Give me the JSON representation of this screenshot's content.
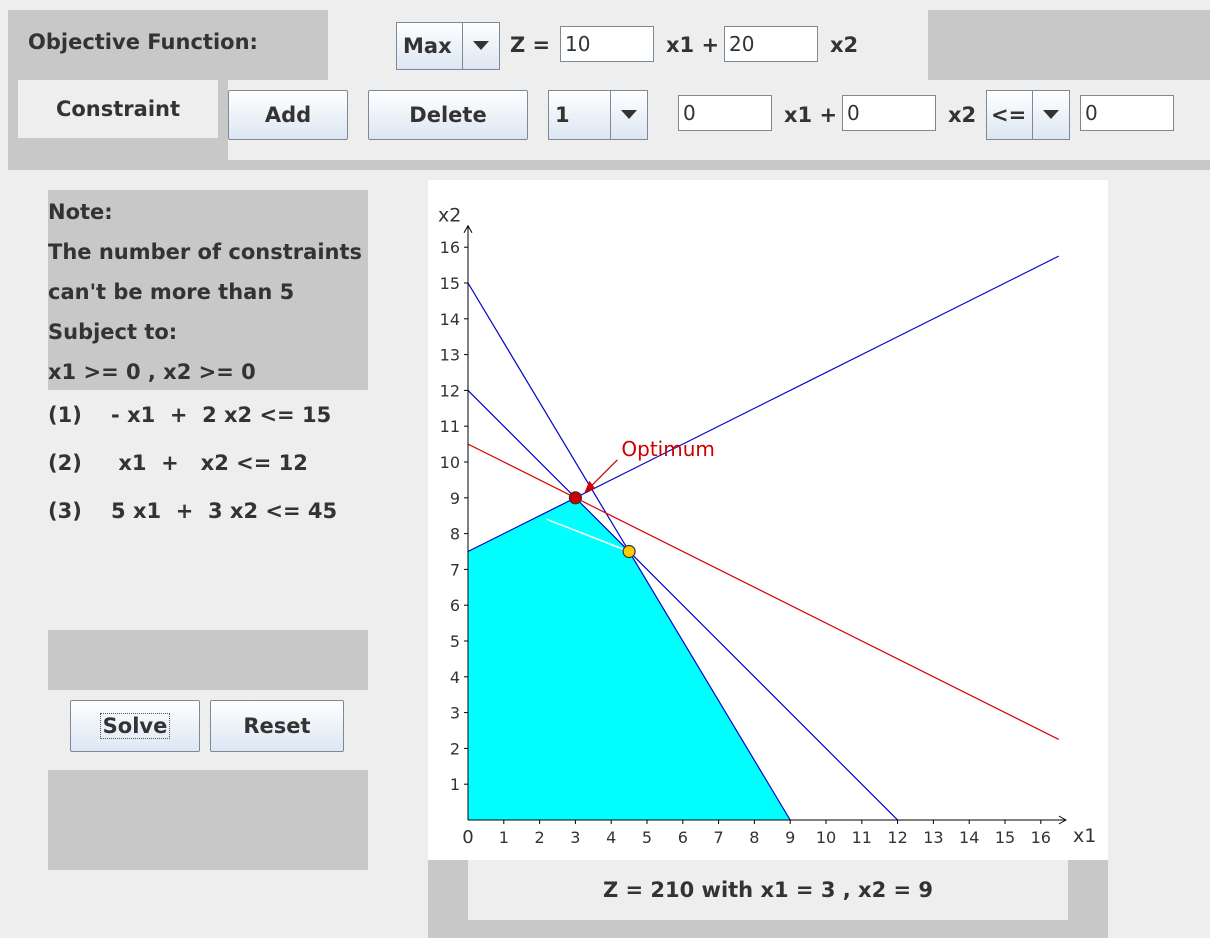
{
  "objective": {
    "label": "Objective Function:",
    "mode": "Max",
    "z_label": "Z =",
    "coef1": "10",
    "x1_plus": "x1 +",
    "coef2": "20",
    "x2_label": "x2"
  },
  "constraint_bar": {
    "tab_label": "Constraint",
    "add_label": "Add",
    "delete_label": "Delete",
    "index": "1",
    "coef1": "0",
    "x1_plus": "x1 +",
    "coef2": "0",
    "x2_label": "x2",
    "operator": "<=",
    "rhs": "0"
  },
  "note": {
    "lines": [
      "Note:",
      "The number of constraints",
      "can't be more than 5",
      "Subject to:",
      "x1 >= 0 , x2 >= 0"
    ]
  },
  "constraints": [
    {
      "text": "(1)    - x1  +  2 x2 <= 15"
    },
    {
      "text": "(2)     x1  +   x2 <= 12"
    },
    {
      "text": "(3)    5 x1  +  3 x2 <= 45"
    }
  ],
  "buttons": {
    "solve": "Solve",
    "reset": "Reset"
  },
  "result": {
    "text": "Z = 210  with  x1 = 3 , x2 = 9"
  },
  "colors": {
    "feasible": "#00ffff",
    "constraint_line": "#0000cc",
    "objective_line": "#dd0000",
    "optimum_marker": "#cc0000",
    "vertex_marker": "#ffcc00"
  },
  "chart_data": {
    "type": "line",
    "xlabel": "x1",
    "ylabel": "x2",
    "xlim": [
      0,
      16
    ],
    "ylim": [
      0,
      16
    ],
    "x_ticks": [
      "0",
      "1",
      "2",
      "3",
      "4",
      "5",
      "6",
      "7",
      "8",
      "9",
      "10",
      "11",
      "12",
      "13",
      "14",
      "15",
      "16"
    ],
    "y_ticks": [
      "1",
      "2",
      "3",
      "4",
      "5",
      "6",
      "7",
      "8",
      "9",
      "10",
      "11",
      "12",
      "13",
      "14",
      "15",
      "16"
    ],
    "feasible_region": [
      [
        0,
        0
      ],
      [
        0,
        7.5
      ],
      [
        3,
        9
      ],
      [
        4.5,
        7.5
      ],
      [
        9,
        0
      ]
    ],
    "constraint_lines": [
      {
        "from": [
          0,
          7.5
        ],
        "to": [
          16.5,
          15.75
        ]
      },
      {
        "from": [
          0,
          12
        ],
        "to": [
          12,
          0
        ]
      },
      {
        "from": [
          0,
          15
        ],
        "to": [
          9,
          0
        ]
      }
    ],
    "objective_line": {
      "from": [
        0,
        10.5
      ],
      "to": [
        16.5,
        2.25
      ]
    },
    "optimum_point": [
      3,
      9
    ],
    "vertex_point": [
      4.5,
      7.5
    ],
    "annotation": "Optimum"
  }
}
